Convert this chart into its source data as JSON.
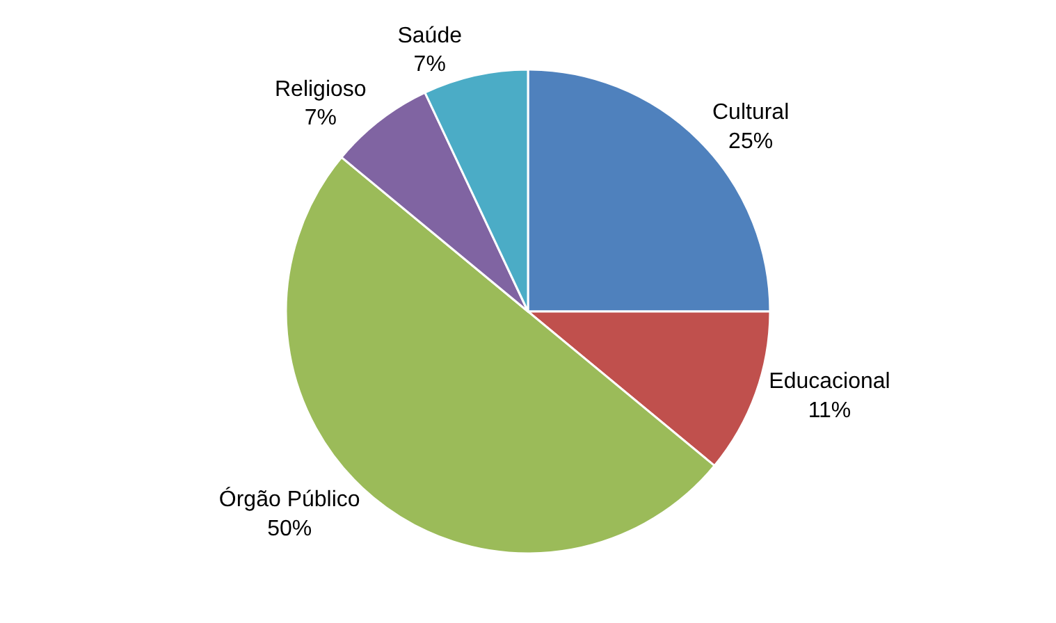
{
  "chart_data": {
    "type": "pie",
    "categories": [
      "Cultural",
      "Educacional",
      "Órgão Público",
      "Religioso",
      "Saúde"
    ],
    "values": [
      25,
      11,
      50,
      7,
      7
    ],
    "value_labels": [
      "25%",
      "11%",
      "50%",
      "7%",
      "7%"
    ],
    "colors": [
      "#4f81bd",
      "#c0504d",
      "#9bbb59",
      "#8064a2",
      "#4bacc6"
    ],
    "legend": false
  }
}
